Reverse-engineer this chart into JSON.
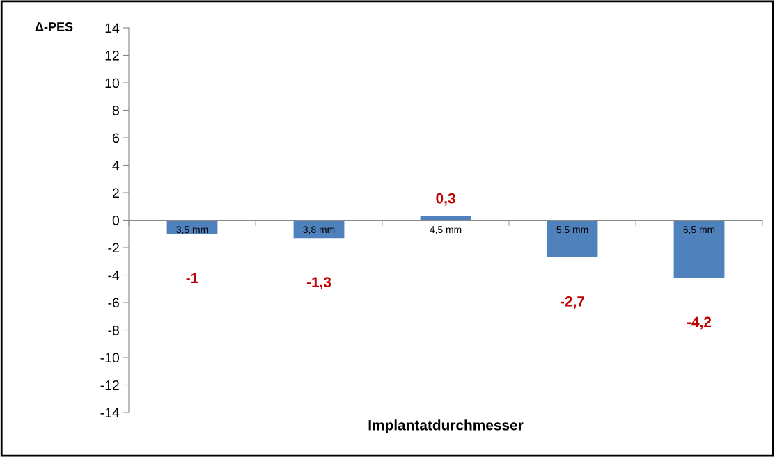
{
  "chart_data": {
    "type": "bar",
    "ylabel": "Δ-PES",
    "xlabel": "Implantatdurchmesser",
    "categories": [
      "3,5 mm",
      "3,8 mm",
      "4,5 mm",
      "5,5 mm",
      "6,5 mm"
    ],
    "values": [
      -1,
      -1.3,
      0.3,
      -2.7,
      -4.2
    ],
    "value_labels": [
      "-1",
      "-1,3",
      "0,3",
      "-2,7",
      "-4,2"
    ],
    "color": "#4f81bd",
    "ylim": [
      -14,
      14
    ],
    "yticks": [
      {
        "value": -14,
        "label": "-14"
      },
      {
        "value": -12,
        "label": "-12"
      },
      {
        "value": -10,
        "label": "-10"
      },
      {
        "value": -8,
        "label": "-8"
      },
      {
        "value": -6,
        "label": "-6"
      },
      {
        "value": -4,
        "label": "-4"
      },
      {
        "value": -2,
        "label": "-2"
      },
      0,
      2,
      4,
      6,
      8,
      10,
      12,
      14
    ],
    "grid": false,
    "legend": false
  }
}
